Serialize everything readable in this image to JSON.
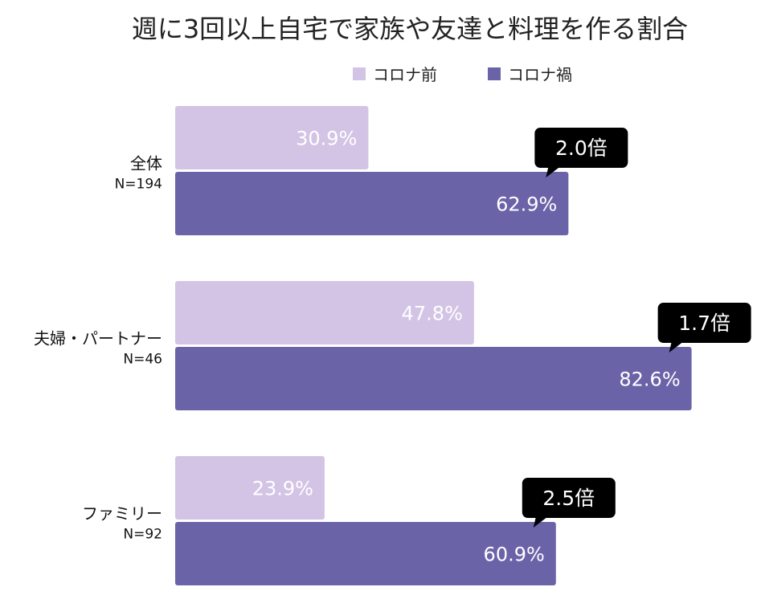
{
  "chart_data": {
    "type": "bar",
    "orientation": "horizontal",
    "title": "週に3回以上自宅で家族や友達と料理を作る割合",
    "xlim": [
      0,
      100
    ],
    "grid": false,
    "legend_position": "top-right",
    "colors": {
      "before": "#d3c4e6",
      "during": "#6a63a8",
      "callout": "#000000"
    },
    "categories": [
      {
        "label": "全体",
        "n": "N=194",
        "ratio": "2.0倍"
      },
      {
        "label": "夫婦・パートナー",
        "n": "N=46",
        "ratio": "1.7倍"
      },
      {
        "label": "ファミリー",
        "n": "N=92",
        "ratio": "2.5倍"
      }
    ],
    "series": [
      {
        "name": "コロナ前",
        "values": [
          30.9,
          47.8,
          23.9
        ],
        "labels": [
          "30.9%",
          "47.8%",
          "23.9%"
        ]
      },
      {
        "name": "コロナ禍",
        "values": [
          62.9,
          82.6,
          60.9
        ],
        "labels": [
          "62.9%",
          "82.6%",
          "60.9%"
        ]
      }
    ]
  }
}
